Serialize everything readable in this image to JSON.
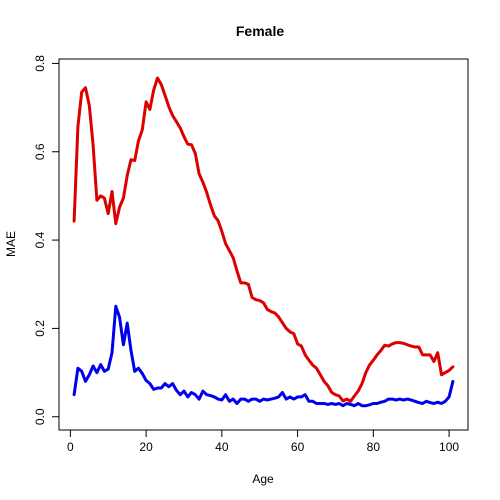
{
  "chart_data": {
    "type": "line",
    "title": "Female",
    "xlabel": "Age",
    "ylabel": "MAE",
    "xlim": [
      -3,
      105
    ],
    "ylim": [
      -0.03,
      0.81
    ],
    "xticks": [
      0,
      20,
      40,
      60,
      80,
      100
    ],
    "yticks": [
      0.0,
      0.2,
      0.4,
      0.6,
      0.8
    ],
    "xtick_labels": [
      "0",
      "20",
      "40",
      "60",
      "80",
      "100"
    ],
    "ytick_labels": [
      "0.0",
      "0.2",
      "0.4",
      "0.6",
      "0.8"
    ],
    "grid": false,
    "legend": "none",
    "series": [
      {
        "color": "#dd0000",
        "x": [
          1,
          2,
          3,
          4,
          5,
          6,
          7,
          8,
          9,
          10,
          11,
          12,
          13,
          14,
          15,
          16,
          17,
          18,
          19,
          20,
          21,
          22,
          23,
          24,
          25,
          26,
          27,
          28,
          29,
          30,
          31,
          32,
          33,
          34,
          35,
          36,
          37,
          38,
          39,
          40,
          41,
          42,
          43,
          44,
          45,
          46,
          47,
          48,
          49,
          50,
          51,
          52,
          53,
          54,
          55,
          56,
          57,
          58,
          59,
          60,
          61,
          62,
          63,
          64,
          65,
          66,
          67,
          68,
          69,
          70,
          71,
          72,
          73,
          74,
          75,
          76,
          77,
          78,
          79,
          80,
          81,
          82,
          83,
          84,
          85,
          86,
          87,
          88,
          89,
          90,
          91,
          92,
          93,
          94,
          95,
          96,
          97,
          98,
          99,
          100,
          101
        ],
        "values": [
          0.443,
          0.657,
          0.735,
          0.745,
          0.705,
          0.615,
          0.49,
          0.5,
          0.495,
          0.46,
          0.51,
          0.437,
          0.475,
          0.495,
          0.546,
          0.582,
          0.58,
          0.625,
          0.65,
          0.713,
          0.696,
          0.74,
          0.767,
          0.752,
          0.728,
          0.702,
          0.682,
          0.668,
          0.654,
          0.634,
          0.617,
          0.616,
          0.596,
          0.55,
          0.531,
          0.508,
          0.48,
          0.455,
          0.444,
          0.42,
          0.392,
          0.376,
          0.36,
          0.33,
          0.303,
          0.303,
          0.3,
          0.27,
          0.265,
          0.263,
          0.258,
          0.243,
          0.238,
          0.235,
          0.226,
          0.213,
          0.2,
          0.192,
          0.188,
          0.165,
          0.16,
          0.14,
          0.128,
          0.117,
          0.11,
          0.095,
          0.08,
          0.07,
          0.055,
          0.05,
          0.047,
          0.036,
          0.04,
          0.035,
          0.047,
          0.058,
          0.075,
          0.1,
          0.117,
          0.128,
          0.14,
          0.15,
          0.162,
          0.16,
          0.165,
          0.168,
          0.168,
          0.166,
          0.163,
          0.16,
          0.158,
          0.158,
          0.14,
          0.14,
          0.14,
          0.125,
          0.145,
          0.095,
          0.1,
          0.105,
          0.113
        ]
      },
      {
        "color": "#0000ee",
        "x": [
          1,
          2,
          3,
          4,
          5,
          6,
          7,
          8,
          9,
          10,
          11,
          12,
          13,
          14,
          15,
          16,
          17,
          18,
          19,
          20,
          21,
          22,
          23,
          24,
          25,
          26,
          27,
          28,
          29,
          30,
          31,
          32,
          33,
          34,
          35,
          36,
          37,
          38,
          39,
          40,
          41,
          42,
          43,
          44,
          45,
          46,
          47,
          48,
          49,
          50,
          51,
          52,
          53,
          54,
          55,
          56,
          57,
          58,
          59,
          60,
          61,
          62,
          63,
          64,
          65,
          66,
          67,
          68,
          69,
          70,
          71,
          72,
          73,
          74,
          75,
          76,
          77,
          78,
          79,
          80,
          81,
          82,
          83,
          84,
          85,
          86,
          87,
          88,
          89,
          90,
          91,
          92,
          93,
          94,
          95,
          96,
          97,
          98,
          99,
          100,
          101
        ],
        "values": [
          0.05,
          0.11,
          0.103,
          0.08,
          0.095,
          0.115,
          0.1,
          0.118,
          0.103,
          0.108,
          0.145,
          0.25,
          0.225,
          0.163,
          0.212,
          0.15,
          0.103,
          0.11,
          0.098,
          0.082,
          0.075,
          0.062,
          0.065,
          0.065,
          0.075,
          0.068,
          0.075,
          0.06,
          0.05,
          0.058,
          0.045,
          0.055,
          0.05,
          0.04,
          0.058,
          0.05,
          0.048,
          0.045,
          0.04,
          0.038,
          0.05,
          0.035,
          0.04,
          0.03,
          0.04,
          0.04,
          0.035,
          0.04,
          0.04,
          0.035,
          0.04,
          0.038,
          0.04,
          0.042,
          0.045,
          0.055,
          0.04,
          0.045,
          0.04,
          0.045,
          0.045,
          0.05,
          0.035,
          0.035,
          0.03,
          0.03,
          0.03,
          0.028,
          0.03,
          0.028,
          0.03,
          0.025,
          0.03,
          0.028,
          0.025,
          0.03,
          0.025,
          0.025,
          0.027,
          0.03,
          0.03,
          0.033,
          0.035,
          0.04,
          0.04,
          0.038,
          0.04,
          0.038,
          0.04,
          0.038,
          0.035,
          0.032,
          0.03,
          0.035,
          0.032,
          0.03,
          0.033,
          0.03,
          0.035,
          0.045,
          0.08
        ]
      }
    ]
  }
}
